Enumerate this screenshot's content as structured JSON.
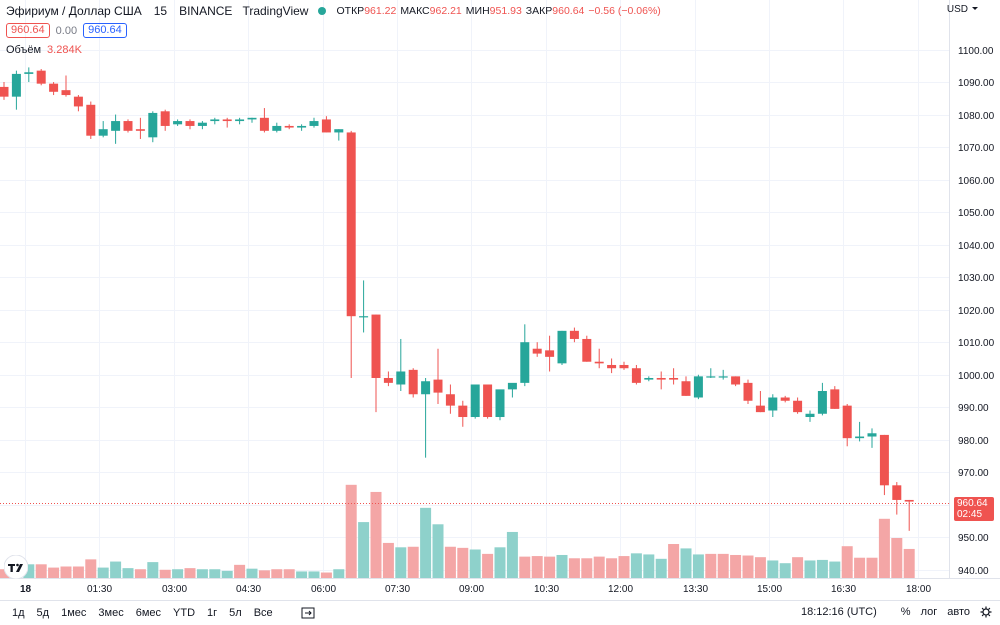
{
  "header": {
    "symbol": "Эфириум / Доллар США",
    "interval": "15",
    "exchange": "BINANCE",
    "source": "TradingView",
    "open_label": "ОТКР",
    "open_value": "961.22",
    "high_label": "МАКС",
    "high_value": "962.21",
    "low_label": "МИН",
    "low_value": "951.93",
    "close_label": "ЗАКР",
    "close_value": "960.64",
    "change": "−0.56 (−0.06%)",
    "bid": "960.64",
    "spread": "0.00",
    "ask": "960.64",
    "volume_label": "Объём",
    "volume_value": "3.284K",
    "currency": "USD"
  },
  "last_price": {
    "value": "960.64",
    "countdown": "02:45"
  },
  "bottom": {
    "ranges": [
      "1д",
      "5д",
      "1мес",
      "3мес",
      "6мес",
      "YTD",
      "1г",
      "5л",
      "Все"
    ],
    "clock": "18:12:16 (UTC)",
    "percent": "%",
    "log": "лог",
    "auto": "авто"
  },
  "colors": {
    "up": "#26a69a",
    "down": "#ef5350",
    "volume_up": "#8ed1cb",
    "volume_down": "#f4a6a6"
  },
  "chart_data": {
    "type": "candlestick",
    "y_range": [
      937.5,
      1106
    ],
    "y_ticks": [
      940,
      950,
      960,
      970,
      980,
      990,
      1000,
      1010,
      1020,
      1030,
      1040,
      1050,
      1060,
      1070,
      1080,
      1090,
      1100
    ],
    "y_tick_labels": [
      "940.00",
      "950.00",
      "960.00",
      "970.00",
      "980.00",
      "990.00",
      "1000.00",
      "1010.00",
      "1020.00",
      "1030.00",
      "1040.00",
      "1050.00",
      "1060.00",
      "1070.00",
      "1080.00",
      "1090.00",
      "1100.00"
    ],
    "x_ticks": [
      {
        "index": 1.7,
        "label": "18"
      },
      {
        "index": 7.7,
        "label": "01:30"
      },
      {
        "index": 13.7,
        "label": "03:00"
      },
      {
        "index": 19.7,
        "label": "04:30"
      },
      {
        "index": 25.7,
        "label": "06:00"
      },
      {
        "index": 31.7,
        "label": "07:30"
      },
      {
        "index": 37.7,
        "label": "09:00"
      },
      {
        "index": 43.7,
        "label": "10:30"
      },
      {
        "index": 49.7,
        "label": "12:00"
      },
      {
        "index": 55.7,
        "label": "13:30"
      },
      {
        "index": 61.7,
        "label": "15:00"
      },
      {
        "index": 67.7,
        "label": "16:30"
      },
      {
        "index": 73.7,
        "label": "18:00"
      }
    ],
    "candles": [
      [
        1088.5,
        1090,
        1084.5,
        1085.5
      ],
      [
        1085.5,
        1093.5,
        1081.5,
        1092.5
      ],
      [
        1092.5,
        1094.5,
        1090,
        1093
      ],
      [
        1093.5,
        1094,
        1089,
        1089.5
      ],
      [
        1089.5,
        1090,
        1086,
        1087
      ],
      [
        1087.5,
        1092,
        1085.5,
        1086
      ],
      [
        1085.5,
        1086,
        1081,
        1082.5
      ],
      [
        1083,
        1084,
        1072.5,
        1073.5
      ],
      [
        1073.5,
        1078,
        1073,
        1075.5
      ],
      [
        1075,
        1080,
        1071,
        1078
      ],
      [
        1078,
        1078.5,
        1074.5,
        1075
      ],
      [
        1075.5,
        1079,
        1072.5,
        1075
      ],
      [
        1073,
        1081,
        1071.5,
        1080.5
      ],
      [
        1081,
        1081.5,
        1075,
        1076.5
      ],
      [
        1077,
        1078.5,
        1076.5,
        1078
      ],
      [
        1078,
        1078.5,
        1075.5,
        1076.5
      ],
      [
        1076.5,
        1078,
        1075.5,
        1077.5
      ],
      [
        1078,
        1079,
        1077,
        1078.5
      ],
      [
        1078.5,
        1079,
        1076,
        1078
      ],
      [
        1078,
        1079,
        1077,
        1078.5
      ],
      [
        1078.5,
        1079,
        1077.5,
        1079
      ],
      [
        1079,
        1082,
        1074.5,
        1075
      ],
      [
        1075,
        1077.5,
        1074.5,
        1076.5
      ],
      [
        1076.5,
        1077,
        1075.5,
        1076
      ],
      [
        1076,
        1077,
        1075,
        1076.5
      ],
      [
        1076.5,
        1079,
        1076,
        1078
      ],
      [
        1078.5,
        1079.5,
        1074.5,
        1074.5
      ],
      [
        1074.5,
        1075.5,
        1072,
        1075.5
      ],
      [
        1074.5,
        1075,
        999,
        1018
      ],
      [
        1018,
        1029,
        1013,
        1018
      ],
      [
        1018.5,
        1018.5,
        988.5,
        999
      ],
      [
        999,
        1001,
        996.5,
        997.5
      ],
      [
        997,
        1011,
        995,
        1001
      ],
      [
        1001.5,
        1002,
        993,
        994
      ],
      [
        994,
        999,
        974.5,
        998
      ],
      [
        998.5,
        1008,
        991,
        994.5
      ],
      [
        994,
        997,
        988,
        990.5
      ],
      [
        990.5,
        992,
        984,
        987
      ],
      [
        987,
        997,
        986.5,
        997
      ],
      [
        997,
        997,
        986.5,
        987
      ],
      [
        987,
        995,
        986,
        995.5
      ],
      [
        995.5,
        997,
        993,
        997.5
      ],
      [
        997.5,
        1015.5,
        996.5,
        1010
      ],
      [
        1008,
        1010,
        1005.5,
        1006.5
      ],
      [
        1007.5,
        1012,
        1001,
        1005.5
      ],
      [
        1003.5,
        1013.5,
        1003,
        1013.5
      ],
      [
        1013.5,
        1014.5,
        1010,
        1011
      ],
      [
        1011,
        1012,
        1004,
        1004
      ],
      [
        1004,
        1008,
        1002,
        1003.5
      ],
      [
        1003,
        1005,
        1000.5,
        1002
      ],
      [
        1003,
        1004,
        1001.5,
        1002
      ],
      [
        1002,
        1003,
        997,
        997.5
      ],
      [
        998.5,
        999.5,
        998,
        999
      ],
      [
        999,
        1001,
        995.5,
        998.5
      ],
      [
        999,
        1002,
        997,
        998.5
      ],
      [
        998,
        999.5,
        993.5,
        993.5
      ],
      [
        993,
        1000,
        992.5,
        999.5
      ],
      [
        999.5,
        1002,
        999,
        999.5
      ],
      [
        999.5,
        1001.5,
        998.5,
        999.5
      ],
      [
        999.5,
        999.5,
        996.5,
        997
      ],
      [
        997.5,
        998.5,
        991,
        992
      ],
      [
        990.5,
        995,
        988.5,
        988.5
      ],
      [
        989,
        994,
        987,
        993
      ],
      [
        993,
        993.5,
        991.5,
        992
      ],
      [
        992,
        993,
        988,
        988.5
      ],
      [
        987,
        989,
        985.5,
        988
      ],
      [
        988,
        997.5,
        987.5,
        995
      ],
      [
        995.5,
        996.5,
        989.5,
        989.5
      ],
      [
        990.5,
        991,
        978,
        980.5
      ],
      [
        980.5,
        985.5,
        979.5,
        981
      ],
      [
        981,
        983.5,
        977.5,
        982
      ],
      [
        981.5,
        981.5,
        963,
        966
      ],
      [
        966,
        967,
        957,
        961.5
      ],
      [
        961.5,
        961.5,
        952,
        961
      ]
    ],
    "volume_max": 270,
    "volumes": [
      [
        16,
        "d"
      ],
      [
        10,
        "u"
      ],
      [
        25,
        "u"
      ],
      [
        25,
        "d"
      ],
      [
        19,
        "d"
      ],
      [
        21,
        "d"
      ],
      [
        21,
        "d"
      ],
      [
        34,
        "d"
      ],
      [
        19,
        "u"
      ],
      [
        30,
        "u"
      ],
      [
        18,
        "u"
      ],
      [
        16,
        "d"
      ],
      [
        29,
        "u"
      ],
      [
        15,
        "d"
      ],
      [
        16,
        "u"
      ],
      [
        18,
        "d"
      ],
      [
        16,
        "u"
      ],
      [
        16,
        "u"
      ],
      [
        13,
        "u"
      ],
      [
        24,
        "d"
      ],
      [
        17,
        "u"
      ],
      [
        14,
        "d"
      ],
      [
        16,
        "d"
      ],
      [
        16,
        "d"
      ],
      [
        12,
        "u"
      ],
      [
        12,
        "u"
      ],
      [
        10,
        "d"
      ],
      [
        16,
        "u"
      ],
      [
        170,
        "d"
      ],
      [
        102,
        "u"
      ],
      [
        157,
        "d"
      ],
      [
        64,
        "d"
      ],
      [
        56,
        "u"
      ],
      [
        57,
        "d"
      ],
      [
        128,
        "u"
      ],
      [
        98,
        "u"
      ],
      [
        57,
        "d"
      ],
      [
        55,
        "d"
      ],
      [
        52,
        "u"
      ],
      [
        44,
        "d"
      ],
      [
        56,
        "u"
      ],
      [
        84,
        "u"
      ],
      [
        39,
        "d"
      ],
      [
        40,
        "d"
      ],
      [
        39,
        "d"
      ],
      [
        42,
        "u"
      ],
      [
        36,
        "d"
      ],
      [
        36,
        "d"
      ],
      [
        39,
        "d"
      ],
      [
        36,
        "d"
      ],
      [
        40,
        "d"
      ],
      [
        45,
        "u"
      ],
      [
        43,
        "u"
      ],
      [
        35,
        "u"
      ],
      [
        62,
        "d"
      ],
      [
        54,
        "u"
      ],
      [
        43,
        "u"
      ],
      [
        44,
        "d"
      ],
      [
        44,
        "d"
      ],
      [
        42,
        "d"
      ],
      [
        41,
        "d"
      ],
      [
        38,
        "d"
      ],
      [
        32,
        "u"
      ],
      [
        27,
        "u"
      ],
      [
        38,
        "d"
      ],
      [
        32,
        "u"
      ],
      [
        33,
        "u"
      ],
      [
        30,
        "u"
      ],
      [
        58,
        "d"
      ],
      [
        37,
        "d"
      ],
      [
        37,
        "d"
      ],
      [
        108,
        "d"
      ],
      [
        73,
        "d"
      ],
      [
        53,
        "d"
      ]
    ]
  }
}
